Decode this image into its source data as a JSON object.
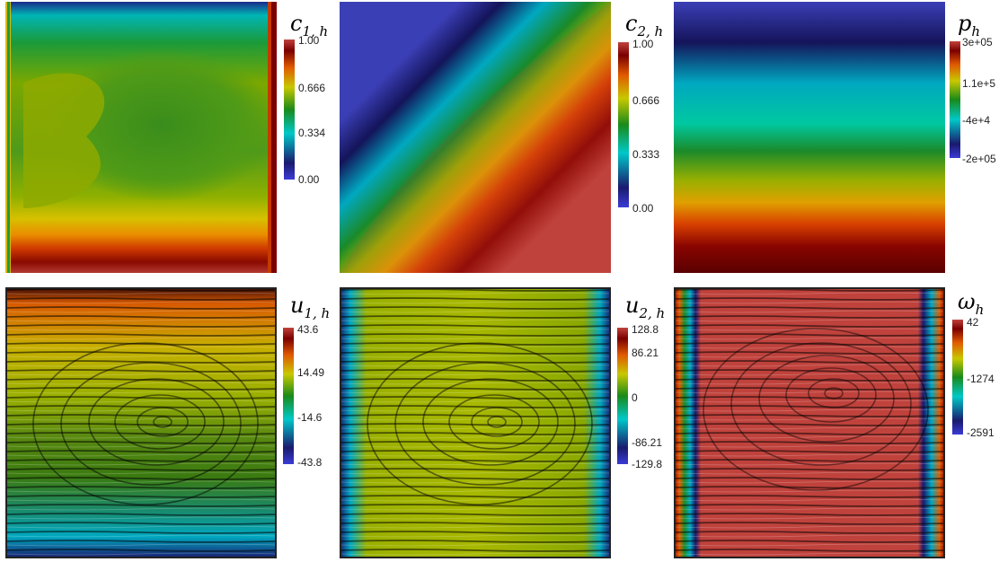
{
  "panels": [
    {
      "id": "c1",
      "title_var": "c",
      "title_sub": "1, h",
      "colorbar_labels": [
        "1.00",
        "0.666",
        "0.334",
        "0.00"
      ]
    },
    {
      "id": "c2",
      "title_var": "c",
      "title_sub": "2, h",
      "colorbar_labels": [
        "1.00",
        "0.666",
        "0.333",
        "0.00"
      ]
    },
    {
      "id": "p",
      "title_var": "p",
      "title_sub": "h",
      "colorbar_labels": [
        "3e+05",
        "1.1e+5",
        "-4e+4",
        "-2e+05"
      ]
    },
    {
      "id": "u1",
      "title_var": "u",
      "title_sub": "1, h",
      "colorbar_labels": [
        "43.6",
        "14.49",
        "-14.6",
        "-43.8"
      ]
    },
    {
      "id": "u2",
      "title_var": "u",
      "title_sub": "2, h",
      "colorbar_labels": [
        "128.8",
        "86.21",
        "0",
        "-86.21",
        "-129.8"
      ]
    },
    {
      "id": "w",
      "title_var": "ω",
      "title_sub": "h",
      "colorbar_labels": [
        "42",
        "-1274",
        "-2591"
      ]
    }
  ],
  "colormap": [
    "#3b2fb0",
    "#1a1a6e",
    "#00c8c8",
    "#007a00",
    "#c8c800",
    "#e05a00",
    "#7a0000",
    "#c0423c"
  ]
}
